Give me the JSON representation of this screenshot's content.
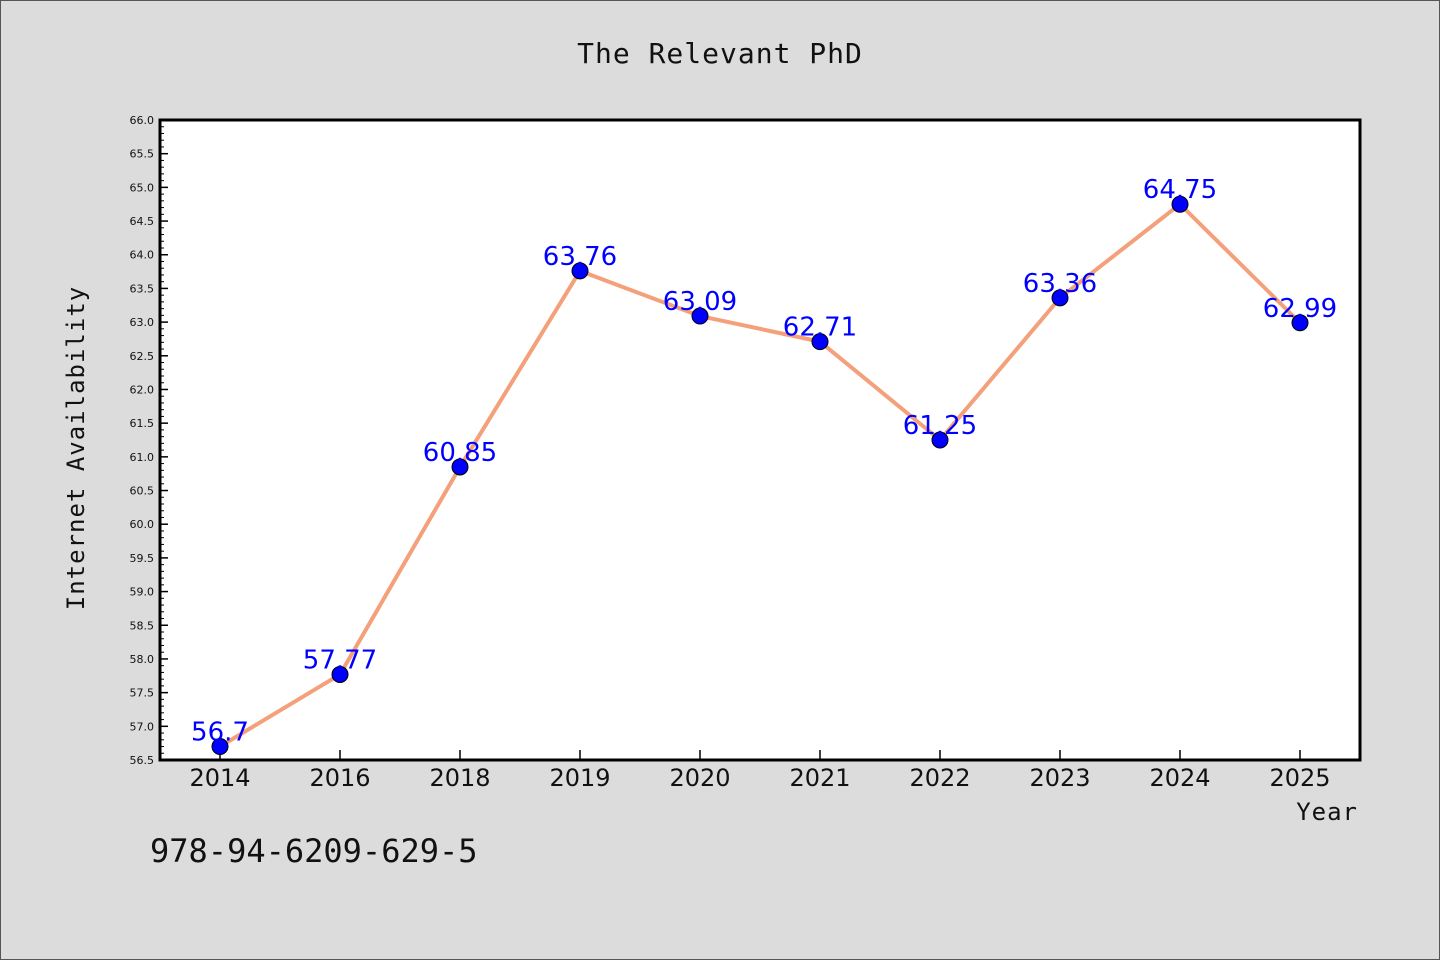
{
  "chart_data": {
    "type": "line",
    "title": "The Relevant PhD",
    "xlabel": "Year",
    "ylabel": "Internet Availability",
    "categories": [
      "2014",
      "2016",
      "2018",
      "2019",
      "2020",
      "2021",
      "2022",
      "2023",
      "2024",
      "2025"
    ],
    "series": [
      {
        "values": [
          56.7,
          57.77,
          60.85,
          63.76,
          63.09,
          62.71,
          61.25,
          63.36,
          64.75,
          62.99
        ],
        "labels": [
          "56.7",
          "57.77",
          "60.85",
          "63.76",
          "63.09",
          "62.71",
          "61.25",
          "63.36",
          "64.75",
          "62.99"
        ],
        "line_color": "#f4a07a",
        "marker_color": "#0000ff"
      }
    ],
    "ylim": [
      56.5,
      66.0
    ],
    "yticks": [
      "56.5",
      "57.0",
      "57.5",
      "58.0",
      "58.5",
      "59.0",
      "59.5",
      "60.0",
      "60.5",
      "61.0",
      "61.5",
      "62.0",
      "62.5",
      "63.0",
      "63.5",
      "64.0",
      "64.5",
      "65.0",
      "65.5",
      "66.0"
    ],
    "grid": false,
    "legend": "none"
  },
  "footer": {
    "isbn": "978-94-6209-629-5"
  },
  "colors": {
    "background": "#dcdcdc",
    "plot_background": "#ffffff",
    "line": "#f4a07a",
    "marker": "#0000ff",
    "data_label": "#0000ff"
  }
}
